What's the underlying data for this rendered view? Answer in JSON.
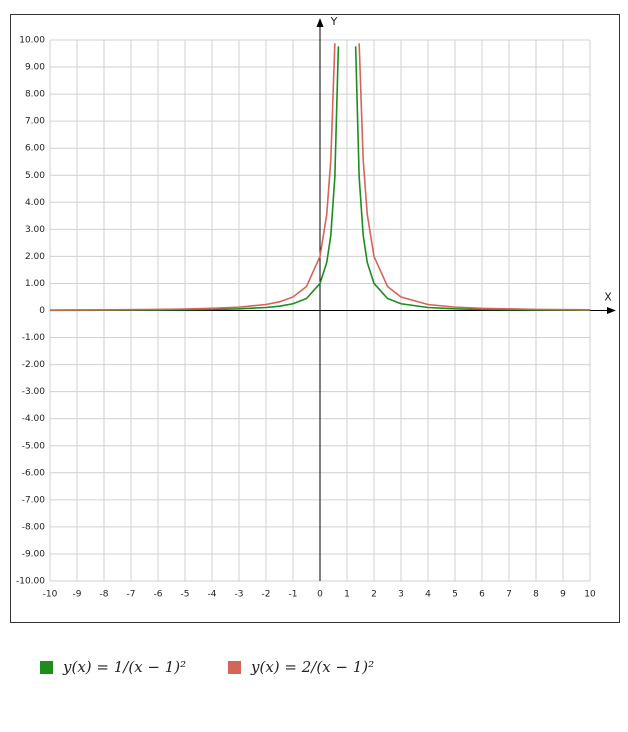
{
  "chart_data": {
    "type": "line",
    "x_label": "X",
    "y_label": "Y",
    "x": [
      -10,
      -8,
      -6,
      -5,
      -4,
      -3,
      -2,
      -1.5,
      -1,
      -0.5,
      0,
      0.25,
      0.4,
      0.55,
      0.68,
      1,
      1.32,
      1.45,
      1.6,
      1.75,
      2,
      2.5,
      3,
      4,
      5,
      6,
      8,
      10
    ],
    "series": [
      {
        "name": "y(x) = 1/(x − 1)²",
        "color": "#1e8c1e",
        "values": [
          0.008,
          0.012,
          0.02,
          0.028,
          0.04,
          0.063,
          0.111,
          0.16,
          0.25,
          0.444,
          1,
          1.778,
          2.778,
          4.938,
          9.766,
          null,
          9.766,
          4.938,
          2.778,
          1.778,
          1,
          0.444,
          0.25,
          0.111,
          0.063,
          0.04,
          0.02,
          0.012
        ]
      },
      {
        "name": "y(x) = 2/(x − 1)²",
        "color": "#d5645a",
        "values": [
          0.017,
          0.025,
          0.041,
          0.056,
          0.08,
          0.125,
          0.222,
          0.32,
          0.5,
          0.889,
          2,
          3.556,
          5.556,
          9.877,
          null,
          null,
          null,
          9.877,
          5.556,
          3.556,
          2,
          0.889,
          0.5,
          0.222,
          0.125,
          0.08,
          0.041,
          0.025
        ]
      }
    ],
    "xlim": [
      -10,
      10
    ],
    "ylim": [
      -10,
      10
    ],
    "xticks": [
      -10,
      -9,
      -8,
      -7,
      -6,
      -5,
      -4,
      -3,
      -2,
      -1,
      0,
      1,
      2,
      3,
      4,
      5,
      6,
      7,
      8,
      9,
      10
    ],
    "yticks": [
      {
        "value": 10,
        "label": "10.00"
      },
      {
        "value": 9,
        "label": "9.00"
      },
      {
        "value": 8,
        "label": "8.00"
      },
      {
        "value": 7,
        "label": "7.00"
      },
      {
        "value": 6,
        "label": "6.00"
      },
      {
        "value": 5,
        "label": "5.00"
      },
      {
        "value": 4,
        "label": "4.00"
      },
      {
        "value": 3,
        "label": "3.00"
      },
      {
        "value": 2,
        "label": "2.00"
      },
      {
        "value": 1,
        "label": "1.00"
      },
      0,
      {
        "value": -1,
        "label": "-1.00"
      },
      {
        "value": -2,
        "label": "-2.00"
      },
      {
        "value": -3,
        "label": "-3.00"
      },
      {
        "value": -4,
        "label": "-4.00"
      },
      {
        "value": -5,
        "label": "-5.00"
      },
      {
        "value": -6,
        "label": "-6.00"
      },
      {
        "value": -7,
        "label": "-7.00"
      },
      {
        "value": -8,
        "label": "-8.00"
      },
      {
        "value": -9,
        "label": "-9.00"
      },
      {
        "value": -10,
        "label": "-10.00"
      }
    ],
    "grid": true
  }
}
